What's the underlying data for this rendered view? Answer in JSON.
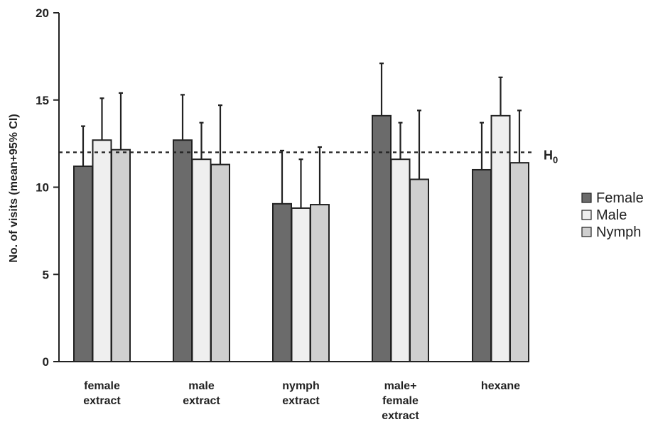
{
  "chart_data": {
    "type": "bar",
    "title": "",
    "xlabel": "",
    "ylabel": "No. of visits (mean+95% CI)",
    "ylim": [
      0,
      20
    ],
    "yticks": [
      0,
      5,
      10,
      15,
      20
    ],
    "grid": false,
    "legend_position": "right",
    "categories": [
      [
        "female",
        "extract"
      ],
      [
        "male",
        "extract"
      ],
      [
        "nymph",
        "extract"
      ],
      [
        "male+",
        "female",
        "extract"
      ],
      [
        "hexane"
      ]
    ],
    "series": [
      {
        "name": "Female",
        "color": "#6b6b6b",
        "values": [
          11.2,
          12.7,
          9.05,
          14.1,
          11.0
        ],
        "ci_upper": [
          13.5,
          15.3,
          12.1,
          17.1,
          13.7
        ]
      },
      {
        "name": "Male",
        "color": "#efefef",
        "values": [
          12.7,
          11.6,
          8.8,
          11.6,
          14.1
        ],
        "ci_upper": [
          15.1,
          13.7,
          11.6,
          13.7,
          16.3
        ]
      },
      {
        "name": "Nymph",
        "color": "#cfcfcf",
        "values": [
          12.15,
          11.3,
          9.0,
          10.45,
          11.4
        ],
        "ci_upper": [
          15.4,
          14.7,
          12.3,
          14.4,
          14.4
        ]
      }
    ],
    "reference_line": {
      "value": 12,
      "label_main": "H",
      "label_sub": "0"
    }
  }
}
